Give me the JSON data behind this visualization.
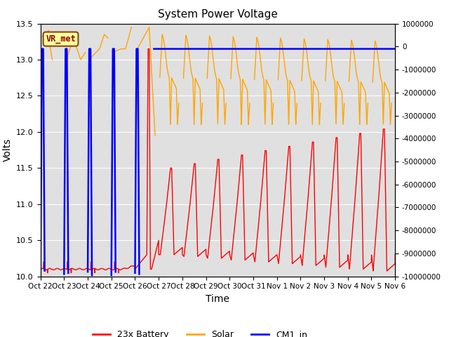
{
  "title": "System Power Voltage",
  "xlabel": "Time",
  "ylabel": "Volts",
  "ylim_left": [
    10.0,
    13.5
  ],
  "ylim_right": [
    -10000000,
    1000000
  ],
  "yticks_left": [
    10.0,
    10.5,
    11.0,
    11.5,
    12.0,
    12.5,
    13.0,
    13.5
  ],
  "yticks_right": [
    1000000,
    0,
    -1000000,
    -2000000,
    -3000000,
    -4000000,
    -5000000,
    -6000000,
    -7000000,
    -8000000,
    -9000000,
    -10000000
  ],
  "xtick_labels": [
    "Oct 22",
    "Oct 23",
    "Oct 24",
    "Oct 25",
    "Oct 26",
    "Oct 27",
    "Oct 28",
    "Oct 29",
    "Oct 30",
    "Oct 31",
    "Nov 1",
    "Nov 2",
    "Nov 3",
    "Nov 4",
    "Nov 5",
    "Nov 6"
  ],
  "background_color": "#ffffff",
  "plot_bg_color": "#e0e0e0",
  "grid_color": "#ffffff",
  "annotation_text": "VR_met",
  "annotation_bbox_facecolor": "#ffff99",
  "annotation_bbox_edgecolor": "#8B4513",
  "annotation_text_color": "#8B0000",
  "cm1_value": 13.15,
  "legend_labels": [
    "23x Battery",
    "Solar",
    "CM1_in"
  ],
  "color_battery": "#ff0000",
  "color_solar": "#ffa500",
  "color_cm1": "#0000ff"
}
